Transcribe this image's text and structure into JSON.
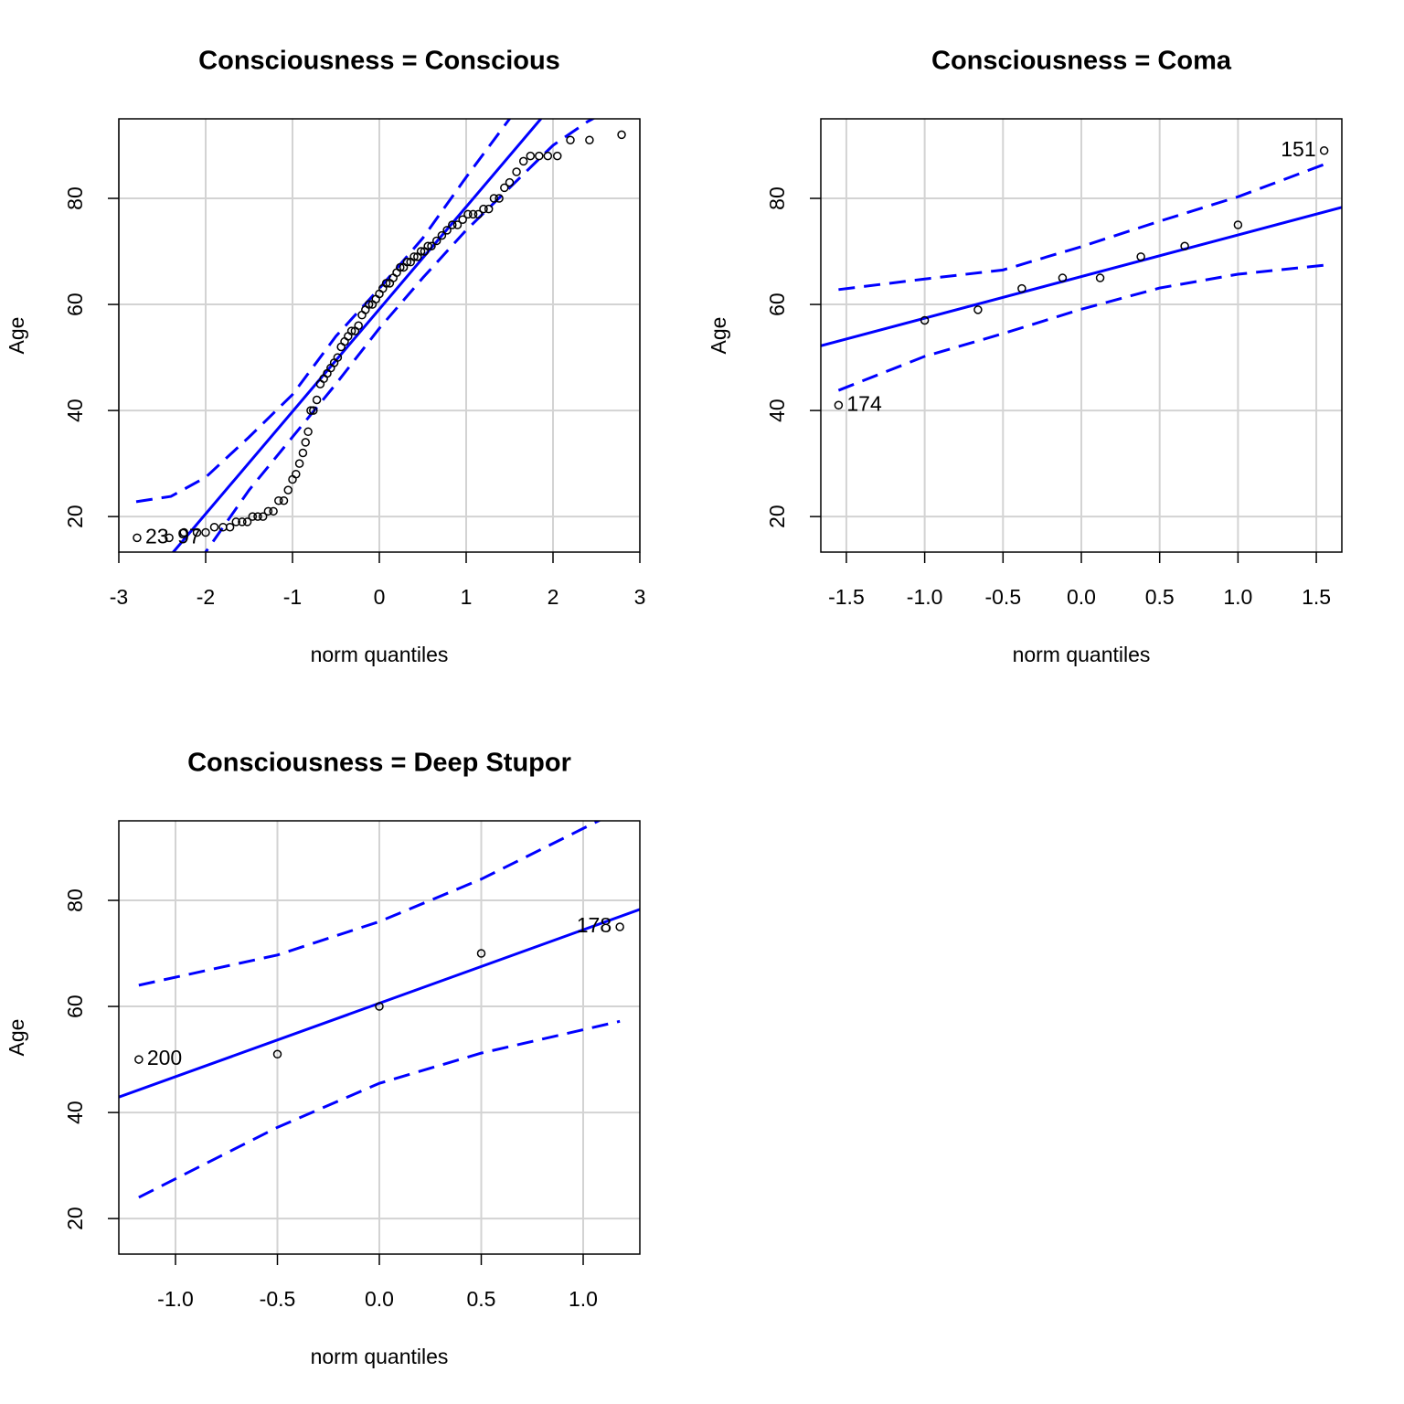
{
  "chart_data": [
    {
      "type": "scatter",
      "title": "Consciousness = Conscious",
      "x_label": "norm quantiles",
      "y_label": "Age",
      "x": [
        -2.79,
        -2.42,
        -2.25,
        -2.1,
        -2.0,
        -1.9,
        -1.8,
        -1.72,
        -1.65,
        -1.58,
        -1.52,
        -1.46,
        -1.4,
        -1.34,
        -1.28,
        -1.22,
        -1.16,
        -1.1,
        -1.05,
        -1.0,
        -0.96,
        -0.92,
        -0.88,
        -0.85,
        -0.82,
        -0.79,
        -0.76,
        -0.72,
        -0.68,
        -0.64,
        -0.6,
        -0.56,
        -0.52,
        -0.48,
        -0.44,
        -0.4,
        -0.36,
        -0.32,
        -0.28,
        -0.24,
        -0.2,
        -0.16,
        -0.12,
        -0.08,
        -0.04,
        0,
        0.04,
        0.08,
        0.12,
        0.16,
        0.2,
        0.24,
        0.28,
        0.32,
        0.36,
        0.4,
        0.44,
        0.48,
        0.52,
        0.56,
        0.6,
        0.66,
        0.72,
        0.78,
        0.84,
        0.9,
        0.96,
        1.02,
        1.08,
        1.14,
        1.2,
        1.26,
        1.32,
        1.38,
        1.44,
        1.5,
        1.58,
        1.66,
        1.74,
        1.84,
        1.94,
        2.05,
        2.2,
        2.42,
        2.79
      ],
      "values": [
        16,
        16,
        17,
        17,
        17,
        18,
        18,
        18,
        19,
        19,
        19,
        20,
        20,
        20,
        21,
        21,
        23,
        23,
        25,
        27,
        28,
        30,
        32,
        34,
        36,
        40,
        40,
        42,
        45,
        46,
        47,
        48,
        49,
        50,
        52,
        53,
        54,
        55,
        55,
        56,
        58,
        59,
        60,
        60,
        61,
        62,
        63,
        64,
        64,
        65,
        66,
        67,
        67,
        68,
        68,
        69,
        69,
        70,
        70,
        71,
        71,
        72,
        73,
        74,
        75,
        75,
        76,
        77,
        77,
        77,
        78,
        78,
        80,
        80,
        82,
        83,
        85,
        87,
        88,
        88,
        88,
        88,
        91,
        91,
        92
      ],
      "point_labels": [
        "23",
        "97",
        null,
        null,
        null,
        null,
        null,
        null,
        null,
        null,
        null,
        null,
        null,
        null,
        null,
        null,
        null,
        null,
        null,
        null,
        null,
        null,
        null,
        null,
        null,
        null,
        null,
        null,
        null,
        null,
        null,
        null,
        null,
        null,
        null,
        null,
        null,
        null,
        null,
        null,
        null,
        null,
        null,
        null,
        null,
        null,
        null,
        null,
        null,
        null,
        null,
        null,
        null,
        null,
        null,
        null,
        null,
        null,
        null,
        null,
        null,
        null,
        null,
        null,
        null,
        null,
        null,
        null,
        null,
        null,
        null,
        null,
        null,
        null,
        null,
        null,
        null,
        null,
        null,
        null,
        null,
        null,
        null,
        null,
        null
      ],
      "point_color": "#000000",
      "reference_line": {
        "intercept": 59.1,
        "slope": 19.3,
        "color": "#0000ff"
      },
      "envelope": {
        "x": [
          -2.8,
          -2.4,
          -2,
          -1.5,
          -1,
          -0.5,
          0,
          0.5,
          1,
          1.5,
          2,
          2.4,
          2.8
        ],
        "upper": [
          22.8,
          23.8,
          27.4,
          35,
          43,
          54,
          63,
          72.5,
          84,
          95,
          103,
          110,
          117
        ],
        "lower": [
          -4,
          5,
          13.3,
          25,
          35,
          45,
          55.5,
          65,
          74,
          82,
          90,
          94.5,
          98
        ],
        "color": "#0000ff"
      },
      "xlim": [
        -3,
        3
      ],
      "ylim": [
        13.3,
        95
      ],
      "xticks": [
        -3,
        -2,
        -1,
        0,
        1,
        2,
        3
      ],
      "yticks": [
        20,
        40,
        60,
        80
      ],
      "grid": true
    },
    {
      "type": "scatter",
      "title": "Consciousness = Coma",
      "x_label": "norm quantiles",
      "y_label": "Age",
      "x": [
        -1.55,
        -1.0,
        -0.66,
        -0.38,
        -0.12,
        0.12,
        0.38,
        0.66,
        1.0,
        1.55
      ],
      "values": [
        41,
        57,
        59,
        63,
        65,
        65,
        69,
        71,
        75,
        89
      ],
      "point_labels": [
        "174",
        null,
        null,
        null,
        null,
        null,
        null,
        null,
        null,
        "151"
      ],
      "point_color": "#000000",
      "reference_line": {
        "intercept": 65.25,
        "slope": 7.85,
        "color": "#0000ff"
      },
      "envelope": {
        "x": [
          -1.55,
          -1,
          -0.5,
          0,
          0.5,
          1,
          1.55
        ],
        "upper": [
          62.8,
          64.8,
          66.5,
          70.9,
          75.7,
          80.3,
          86.4
        ],
        "lower": [
          43.8,
          50.2,
          54.5,
          59.1,
          63.1,
          65.7,
          67.4
        ],
        "color": "#0000ff"
      },
      "xlim": [
        -1.663,
        1.663
      ],
      "ylim": [
        13.3,
        95
      ],
      "xticks": [
        -1.5,
        {
          "value": -1,
          "label": "-1.0"
        },
        -0.5,
        {
          "value": 0,
          "label": "0.0"
        },
        0.5,
        {
          "value": 1,
          "label": "1.0"
        },
        1.5
      ],
      "yticks": [
        20,
        40,
        60,
        80
      ],
      "grid": true
    },
    {
      "type": "scatter",
      "title": "Consciousness = Deep Stupor",
      "x_label": "norm quantiles",
      "y_label": "Age",
      "x": [
        -1.18,
        -0.5,
        0,
        0.5,
        1.18
      ],
      "values": [
        50,
        51,
        60,
        70,
        75
      ],
      "point_labels": [
        "200",
        null,
        null,
        null,
        "178"
      ],
      "point_color": "#000000",
      "reference_line": {
        "intercept": 60.6,
        "slope": 13.85,
        "color": "#0000ff"
      },
      "envelope": {
        "x": [
          -1.18,
          -0.5,
          0,
          0.5,
          1.18
        ],
        "upper": [
          64,
          69.7,
          76,
          84,
          97
        ],
        "lower": [
          24,
          37.2,
          45.5,
          51.2,
          57.2
        ],
        "color": "#0000ff"
      },
      "xlim": [
        -1.278,
        1.278
      ],
      "ylim": [
        13.3,
        95
      ],
      "xticks": [
        {
          "value": -1,
          "label": "-1.0"
        },
        -0.5,
        {
          "value": 0,
          "label": "0.0"
        },
        0.5,
        {
          "value": 1,
          "label": "1.0"
        }
      ],
      "yticks": [
        20,
        40,
        60,
        80
      ],
      "grid": true
    }
  ]
}
